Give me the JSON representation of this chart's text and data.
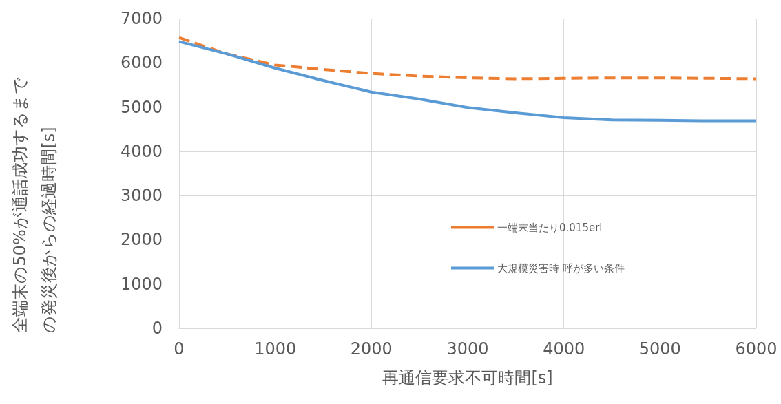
{
  "chart_data": {
    "type": "line",
    "xlabel": "再通信要求不可時間[s]",
    "ylabel": "全端末の50%が通話成功するまでの発災後からの経過時間[s]",
    "x": [
      0,
      500,
      1000,
      1500,
      2000,
      2500,
      3000,
      3500,
      4000,
      4500,
      5000,
      5500,
      6000
    ],
    "series": [
      {
        "name": "一端末当たり0.015erl",
        "color": "#ed7d31",
        "line_style": "dashed",
        "values": [
          6570,
          6200,
          5950,
          5850,
          5760,
          5700,
          5660,
          5640,
          5650,
          5660,
          5660,
          5650,
          5640
        ]
      },
      {
        "name": "大規模災害時 呼が多い条件",
        "color": "#5b9bd5",
        "line_style": "solid",
        "values": [
          6480,
          6200,
          5880,
          5600,
          5340,
          5180,
          4990,
          4870,
          4760,
          4710,
          4700,
          4690,
          4690
        ]
      }
    ],
    "xlim": [
      0,
      6000
    ],
    "xticks": [
      0,
      1000,
      2000,
      3000,
      4000,
      5000,
      6000
    ],
    "ylim": [
      0,
      7000
    ],
    "yticks": [
      0,
      1000,
      2000,
      3000,
      4000,
      5000,
      6000,
      7000
    ],
    "grid": true,
    "legend": "right",
    "marker": "none"
  }
}
